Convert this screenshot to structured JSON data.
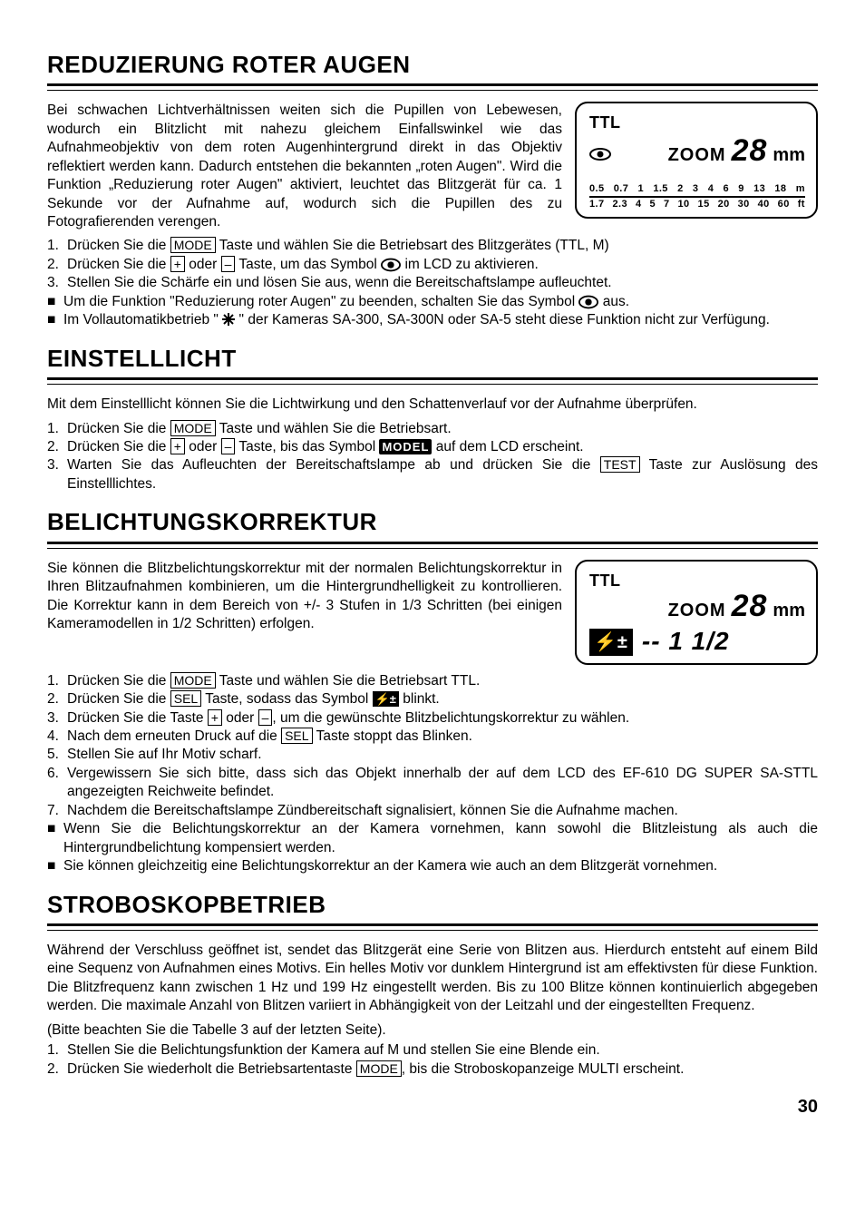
{
  "section1": {
    "heading": "REDUZIERUNG ROTER AUGEN",
    "para": "Bei schwachen Lichtverhältnissen weiten sich die Pupillen von Lebewesen, wodurch ein Blitzlicht mit nahezu gleichem Einfallswinkel wie das Aufnahmeobjektiv von dem roten Augenhintergrund direkt in das Objektiv reflektiert werden kann. Dadurch entstehen die bekannten „roten Augen\". Wird die Funktion „Reduzierung roter Augen\" aktiviert, leuchtet das Blitzgerät für ca. 1 Sekunde vor der Aufnahme auf, wodurch sich die Pupillen des zu Fotografierenden verengen.",
    "lcd": {
      "ttl": "TTL",
      "zoom_label": "ZOOM",
      "zoom_val": "28",
      "mm": "mm",
      "scale_top": [
        "0.5",
        "0.7",
        "1",
        "1.5",
        "2",
        "3",
        "4",
        "6",
        "9",
        "13",
        "18",
        "m"
      ],
      "scale_bot": [
        "1.7",
        "2.3",
        "4",
        "5",
        "7",
        "10",
        "15",
        "20",
        "30",
        "40",
        "60",
        "ft"
      ]
    },
    "steps": [
      {
        "n": "1.",
        "pre": "Drücken Sie die ",
        "k": "MODE",
        "post": " Taste und wählen Sie die Betriebsart des Blitzgerätes (TTL, M)"
      },
      {
        "n": "2.",
        "pre": "Drücken Sie die ",
        "k1": "+",
        "mid": " oder ",
        "k2": "–",
        "post1": " Taste, um das Symbol ",
        "post2": " im LCD zu aktivieren."
      },
      {
        "n": "3.",
        "t": "Stellen Sie die Schärfe ein und lösen Sie aus, wenn die Bereitschaftslampe aufleuchtet."
      },
      {
        "n": "■",
        "pre": "Um die Funktion \"Reduzierung roter Augen\" zu beenden, schalten Sie das Symbol ",
        "post": " aus."
      },
      {
        "n": "■",
        "pre": "Im Vollautomatikbetrieb \" ",
        "post": " \" der Kameras SA-300, SA-300N oder SA-5 steht diese Funktion nicht zur Verfügung."
      }
    ]
  },
  "section2": {
    "heading": "EINSTELLLICHT",
    "para": "Mit dem Einstelllicht können Sie die Lichtwirkung und den Schattenverlauf vor der Aufnahme überprüfen.",
    "steps": [
      {
        "n": "1.",
        "pre": "Drücken Sie die ",
        "k": "MODE",
        "post": " Taste und wählen Sie die Betriebsart."
      },
      {
        "n": "2.",
        "pre": "Drücken Sie die ",
        "k1": "+",
        "mid": " oder ",
        "k2": "–",
        "post1": " Taste, bis das Symbol ",
        "chip": "MODEL",
        "post2": " auf dem LCD erscheint."
      },
      {
        "n": "3.",
        "pre": "Warten Sie das Aufleuchten der Bereitschaftslampe ab und drücken Sie die ",
        "k": "TEST",
        "post": " Taste zur Auslösung des Einstelllichtes."
      }
    ]
  },
  "section3": {
    "heading": "BELICHTUNGSKORREKTUR",
    "para": "Sie können die Blitzbelichtungskorrektur mit der normalen Belichtungskorrektur in Ihren Blitzaufnahmen kombinieren, um die Hintergrundhelligkeit zu kontrollieren. Die Korrektur kann in dem Bereich von +/- 3 Stufen in 1/3 Schritten (bei einigen Kameramodellen in 1/2 Schritten) erfolgen.",
    "lcd": {
      "ttl": "TTL",
      "zoom_label": "ZOOM",
      "zoom_val": "28",
      "mm": "mm",
      "ev": "-- 1 1/2"
    },
    "steps": [
      {
        "n": "1.",
        "pre": "Drücken Sie die ",
        "k": "MODE",
        "post": " Taste und wählen Sie die Betriebsart TTL."
      },
      {
        "n": "2.",
        "pre": "Drücken Sie die ",
        "k": "SEL",
        "post1": " Taste, sodass das Symbol ",
        "post2": " blinkt."
      },
      {
        "n": "3.",
        "pre": "Drücken Sie die Taste ",
        "k1": "+",
        "mid": " oder ",
        "k2": "–",
        "post": ", um die gewünschte Blitzbelichtungskorrektur zu wählen."
      },
      {
        "n": "4.",
        "pre": "Nach dem erneuten Druck auf die ",
        "k": "SEL",
        "post": " Taste stoppt das Blinken."
      },
      {
        "n": "5.",
        "t": "Stellen Sie auf Ihr Motiv scharf."
      },
      {
        "n": "6.",
        "t": "Vergewissern Sie sich bitte, dass sich das Objekt innerhalb der auf dem LCD des EF-610 DG SUPER SA-STTL angezeigten Reichweite befindet."
      },
      {
        "n": "7.",
        "t": "Nachdem die Bereitschaftslampe Zündbereitschaft signalisiert, können Sie die Aufnahme machen."
      },
      {
        "n": "■",
        "t": "Wenn Sie die Belichtungskorrektur an der Kamera vornehmen, kann sowohl die Blitzleistung als auch die Hintergrundbelichtung kompensiert werden."
      },
      {
        "n": "■",
        "t": "Sie können gleichzeitig eine Belichtungskorrektur an der Kamera wie auch an dem Blitzgerät vornehmen."
      }
    ]
  },
  "section4": {
    "heading": "STROBOSKOPBETRIEB",
    "para": "Während der Verschluss geöffnet ist, sendet das Blitzgerät eine Serie von Blitzen aus. Hierdurch entsteht auf einem Bild eine Sequenz von Aufnahmen eines Motivs. Ein helles Motiv vor dunklem Hintergrund ist am effektivsten für diese Funktion. Die Blitzfrequenz kann zwischen 1 Hz und 199 Hz eingestellt werden. Bis zu 100 Blitze können kontinuierlich abgegeben werden. Die maximale Anzahl von Blitzen variiert in Abhängigkeit von der Leitzahl und der eingestellten Frequenz.",
    "note": "(Bitte beachten Sie die Tabelle 3 auf der letzten Seite).",
    "steps": [
      {
        "n": "1.",
        "t": "Stellen Sie die Belichtungsfunktion der Kamera auf M und stellen Sie eine Blende ein."
      },
      {
        "n": "2.",
        "pre": "Drücken Sie wiederholt die Betriebsartentaste ",
        "k": "MODE",
        "post": ", bis die Stroboskopanzeige MULTI erscheint."
      }
    ]
  },
  "page_num": "30"
}
